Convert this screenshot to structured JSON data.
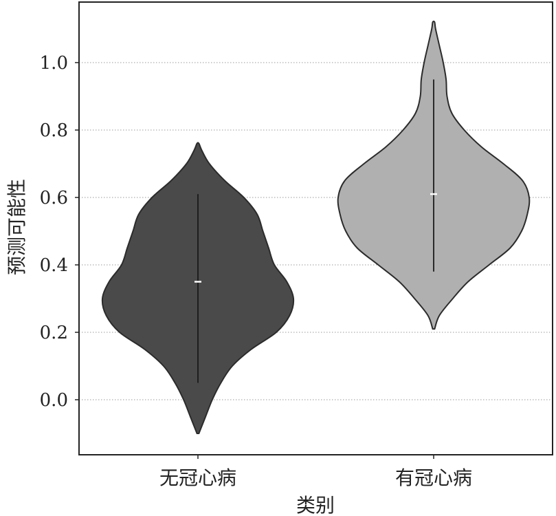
{
  "chart_data": {
    "type": "violin",
    "xlabel": "类别",
    "ylabel": "预测可能性",
    "ylim": [
      -0.165,
      1.185
    ],
    "yticks": [
      "0.0",
      "0.2",
      "0.4",
      "0.6",
      "0.8",
      "1.0"
    ],
    "grid": "horizontal dotted",
    "categories": [
      "无冠心病",
      "有冠心病"
    ],
    "colors": [
      "#4a4a4a",
      "#b0b0b0"
    ],
    "series": [
      {
        "category": "无冠心病",
        "color": "#4a4a4a",
        "min": -0.1,
        "max": 0.76,
        "whisker_low": 0.05,
        "whisker_high": 0.61,
        "median": 0.35,
        "density_profile": [
          [
            -0.1,
            0.01
          ],
          [
            -0.05,
            0.08
          ],
          [
            0.0,
            0.15
          ],
          [
            0.05,
            0.24
          ],
          [
            0.1,
            0.36
          ],
          [
            0.15,
            0.56
          ],
          [
            0.2,
            0.82
          ],
          [
            0.25,
            0.96
          ],
          [
            0.3,
            1.0
          ],
          [
            0.35,
            0.93
          ],
          [
            0.4,
            0.8
          ],
          [
            0.45,
            0.74
          ],
          [
            0.5,
            0.68
          ],
          [
            0.55,
            0.62
          ],
          [
            0.6,
            0.48
          ],
          [
            0.65,
            0.28
          ],
          [
            0.7,
            0.12
          ],
          [
            0.74,
            0.04
          ],
          [
            0.76,
            0.01
          ]
        ]
      },
      {
        "category": "有冠心病",
        "color": "#b0b0b0",
        "min": 0.21,
        "max": 1.12,
        "whisker_low": 0.38,
        "whisker_high": 0.95,
        "median": 0.61,
        "density_profile": [
          [
            0.21,
            0.01
          ],
          [
            0.25,
            0.06
          ],
          [
            0.3,
            0.2
          ],
          [
            0.35,
            0.36
          ],
          [
            0.4,
            0.58
          ],
          [
            0.45,
            0.8
          ],
          [
            0.5,
            0.92
          ],
          [
            0.55,
            0.98
          ],
          [
            0.6,
            1.0
          ],
          [
            0.65,
            0.93
          ],
          [
            0.7,
            0.73
          ],
          [
            0.75,
            0.5
          ],
          [
            0.8,
            0.32
          ],
          [
            0.85,
            0.19
          ],
          [
            0.9,
            0.14
          ],
          [
            0.95,
            0.13
          ],
          [
            1.0,
            0.1
          ],
          [
            1.05,
            0.06
          ],
          [
            1.1,
            0.02
          ],
          [
            1.12,
            0.01
          ]
        ]
      }
    ]
  }
}
